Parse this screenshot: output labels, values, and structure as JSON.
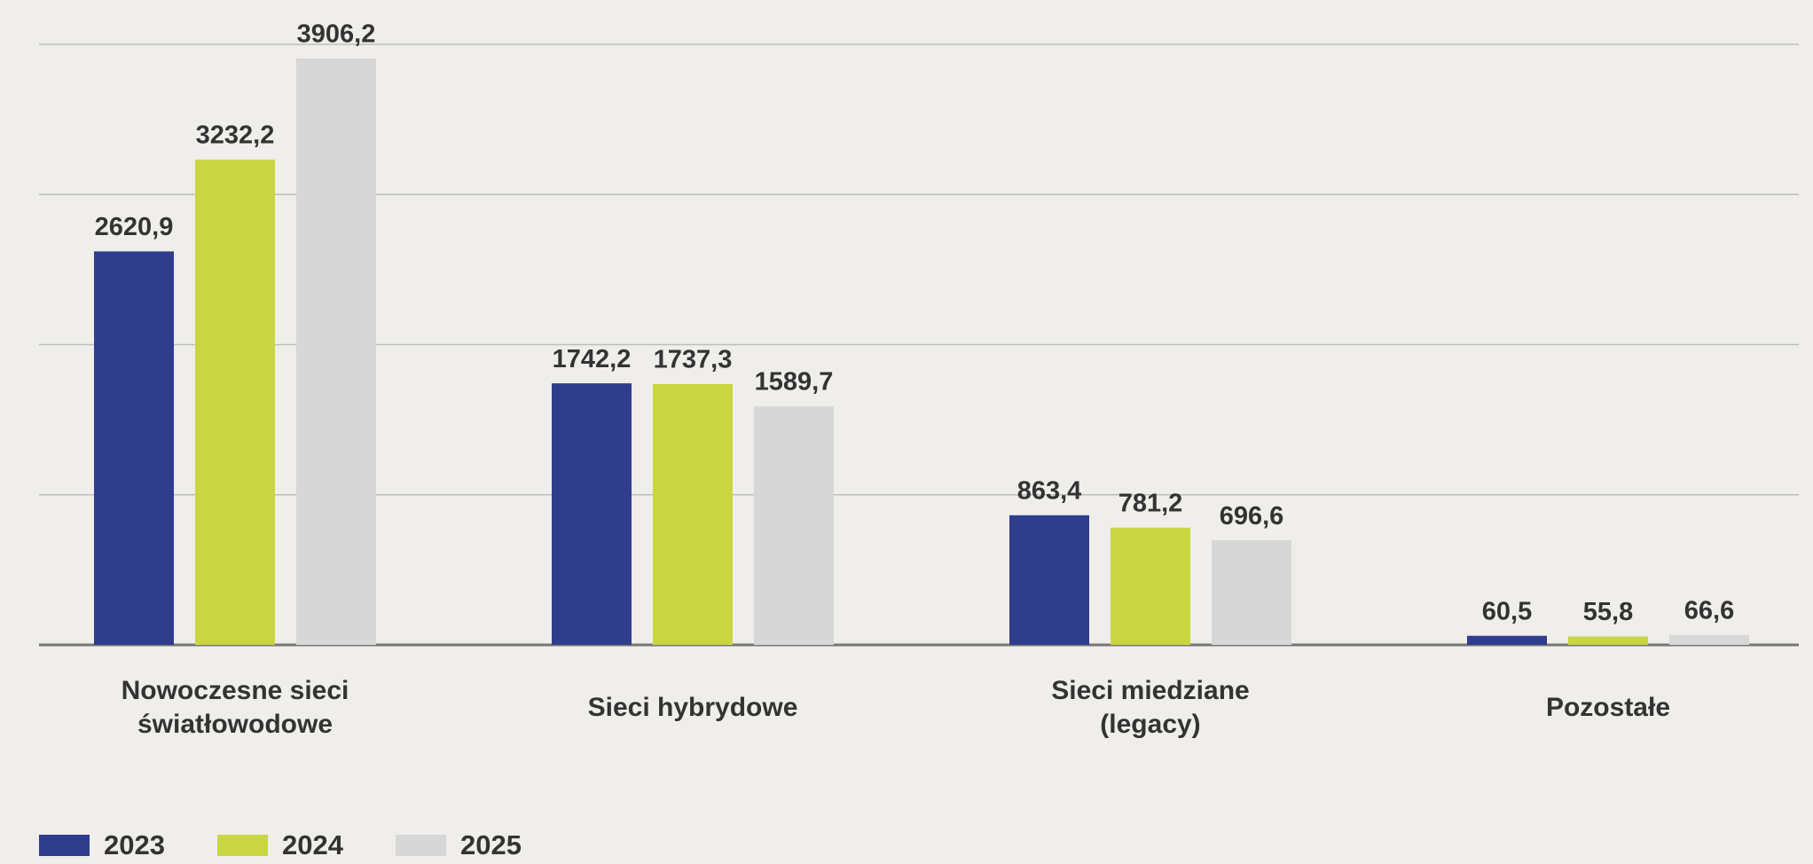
{
  "chart_data": {
    "type": "bar",
    "categories": [
      "Nowoczesne sieci światłowodowe",
      "Sieci hybrydowe",
      "Sieci miedziane (legacy)",
      "Pozostałe"
    ],
    "series": [
      {
        "name": "2023",
        "color": "#2f3d8c",
        "values": [
          2620.9,
          1742.2,
          863.4,
          60.5
        ],
        "value_labels": [
          "2620,9",
          "1742,2",
          "863,4",
          "60,5"
        ]
      },
      {
        "name": "2024",
        "color": "#c8d641",
        "values": [
          3232.2,
          1737.3,
          781.2,
          55.8
        ],
        "value_labels": [
          "3232,2",
          "1737,3",
          "781,2",
          "55,8"
        ]
      },
      {
        "name": "2025",
        "color": "#d7d7d7",
        "values": [
          3906.2,
          1589.7,
          696.6,
          66.6
        ],
        "value_labels": [
          "3906,2",
          "1589,7",
          "696,6",
          "66,6"
        ]
      }
    ],
    "ylim": [
      0,
      4000
    ],
    "yticks": [
      0,
      1000,
      2000,
      3000,
      4000
    ],
    "grid": true,
    "legend": "bottom-left"
  }
}
